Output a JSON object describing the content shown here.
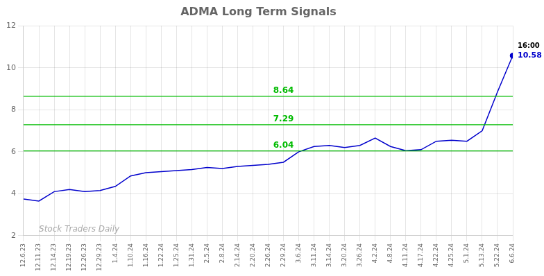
{
  "chart_data": {
    "type": "line",
    "title": "ADMA Long Term Signals",
    "categories": [
      "12.6.23",
      "12.11.23",
      "12.14.23",
      "12.19.23",
      "12.26.23",
      "12.29.23",
      "1.4.24",
      "1.10.24",
      "1.16.24",
      "1.22.24",
      "1.25.24",
      "1.31.24",
      "2.5.24",
      "2.8.24",
      "2.14.24",
      "2.20.24",
      "2.26.24",
      "2.29.24",
      "3.6.24",
      "3.11.24",
      "3.14.24",
      "3.20.24",
      "3.26.24",
      "4.2.24",
      "4.8.24",
      "4.11.24",
      "4.17.24",
      "4.22.24",
      "4.25.24",
      "5.1.24",
      "5.13.24",
      "5.22.24",
      "6.6.24"
    ],
    "values": [
      3.75,
      3.65,
      4.1,
      4.2,
      4.1,
      4.15,
      4.35,
      4.85,
      5.0,
      5.05,
      5.1,
      5.15,
      5.25,
      5.2,
      5.3,
      5.35,
      5.4,
      5.5,
      6.0,
      6.25,
      6.3,
      6.2,
      6.3,
      6.65,
      6.25,
      6.05,
      6.1,
      6.5,
      6.55,
      6.5,
      7.0,
      8.85,
      10.58
    ],
    "color": "#0000cc",
    "hlines": [
      {
        "y": 6.04,
        "label": "6.04",
        "color": "#00bb00"
      },
      {
        "y": 7.29,
        "label": "7.29",
        "color": "#00bb00"
      },
      {
        "y": 8.64,
        "label": "8.64",
        "color": "#00bb00"
      }
    ],
    "annotations": [
      {
        "text": "16:00",
        "color": "#000000"
      },
      {
        "text": "10.58",
        "color": "#0000cc"
      },
      {
        "text": "Stock Traders Daily",
        "color": "#aaaaaa"
      }
    ],
    "ylim": [
      2,
      12
    ],
    "yticks": [
      2,
      4,
      6,
      8,
      10,
      12
    ],
    "grid": true
  }
}
